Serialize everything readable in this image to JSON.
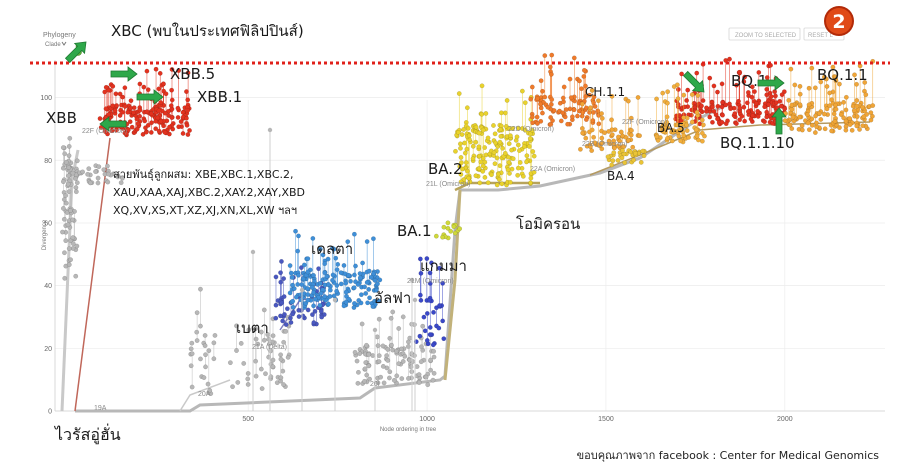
{
  "header": {
    "panel_title": "Phylogeny",
    "clade_label": "Clade",
    "zoom_button": "ZOOM TO SELECTED",
    "reset_button": "RESET L",
    "badge_number": "2"
  },
  "colors": {
    "red_line": "#e0201a",
    "badge": "#d63a12",
    "arrow": "#2ea84a",
    "grey": "#b7b7b7",
    "blue": "#3e8fd8",
    "yellow": "#e9d22c",
    "orange": "#f0a537",
    "red": "#e2321f",
    "olive": "#c2b27a"
  },
  "chart_data": {
    "type": "scatter",
    "xlabel": "Node ordering in tree",
    "ylabel": "Divergence",
    "xlim": [
      -40,
      2280
    ],
    "ylim": [
      0,
      112
    ],
    "x_ticks": [
      "500",
      "1000",
      "1500",
      "2000"
    ],
    "y_ticks": [
      "0",
      "20",
      "40",
      "60",
      "80",
      "100"
    ],
    "grid": true,
    "clade_labels": [
      "19A",
      "20A",
      "20I",
      "21A (Delta)",
      "21M (Omicron)",
      "21L (Omicron)",
      "22A (Omicron)",
      "22B (Omicron)",
      "22D (Omicron)",
      "22F (Omicron)",
      "22F (Omicron)"
    ],
    "annotations": {
      "xbc": "XBC (พบในประเทศฟิลิปปินส์)",
      "xbb": "XBB",
      "xbb5": "XBB.5",
      "xbb1": "XBB.1",
      "recomb_line1": "สายพันธุ์ลูกผสม:  XBE,XBC.1,XBC.2,",
      "recomb_line2": "XAU,XAA,XAJ,XBC.2,XAY.2,XAY,XBD",
      "recomb_line3": "XQ,XV,XS,XT,XZ,XJ,XN,XL,XW  ฯลฯ",
      "delta": "เดลตา",
      "beta": "เบตา",
      "alpha": "อัลฟา",
      "gamma": "แกมมา",
      "ba1": "BA.1",
      "ba2": "BA.2",
      "omicron": "โอมิครอน",
      "ba4": "BA.4",
      "ba5": "BA.5",
      "ch11": "CH.1.1",
      "bq1": "BQ.1",
      "bq11": "BQ.1.1",
      "bq1110": "BQ.1.1.10",
      "wuhan": "ไวรัสอู่ฮั่น"
    },
    "series": [
      {
        "name": "19A",
        "color": "grey",
        "x": [
          30,
          60,
          120,
          220,
          300,
          360
        ],
        "y": [
          1,
          2,
          1.5,
          1,
          1,
          1.5
        ]
      },
      {
        "name": "20A",
        "color": "grey",
        "x": [
          380,
          420,
          460,
          500,
          560,
          600
        ],
        "y": [
          3,
          6,
          12,
          20,
          17,
          14
        ]
      },
      {
        "name": "20I",
        "color": "grey",
        "x": [
          820,
          860,
          900,
          940,
          980,
          1020,
          1060
        ],
        "y": [
          8,
          9,
          10,
          11,
          12,
          12,
          13
        ]
      },
      {
        "name": "21A (Delta)",
        "color": "blue",
        "x": [
          660,
          700,
          740,
          780,
          820,
          860
        ],
        "y": [
          35,
          38,
          39,
          38,
          37,
          36
        ]
      },
      {
        "name": "21M (Omicron)",
        "color": "yellow",
        "x": [
          1060,
          1080,
          1100
        ],
        "y": [
          48,
          49,
          50
        ]
      },
      {
        "name": "21L (Omicron)",
        "color": "yellow",
        "x": [
          1150,
          1200,
          1260,
          1320,
          1380
        ],
        "y": [
          67,
          70,
          72,
          71,
          70
        ]
      },
      {
        "name": "22B (Omicron)",
        "color": "orange",
        "x": [
          1800,
          1900,
          2000,
          2100,
          2200
        ],
        "y": [
          80,
          83,
          86,
          85,
          84
        ]
      },
      {
        "name": "22D (Omicron)",
        "color": "red",
        "x": [
          1400,
          1450,
          1500
        ],
        "y": [
          84,
          86,
          88
        ]
      },
      {
        "name": "22F (Omicron)",
        "color": "red",
        "x": [
          80,
          120,
          160,
          200,
          240
        ],
        "y": [
          88,
          92,
          96,
          94,
          90
        ]
      }
    ]
  },
  "credit": "ขอบคุณภาพจาก facebook : Center for Medical Genomics"
}
